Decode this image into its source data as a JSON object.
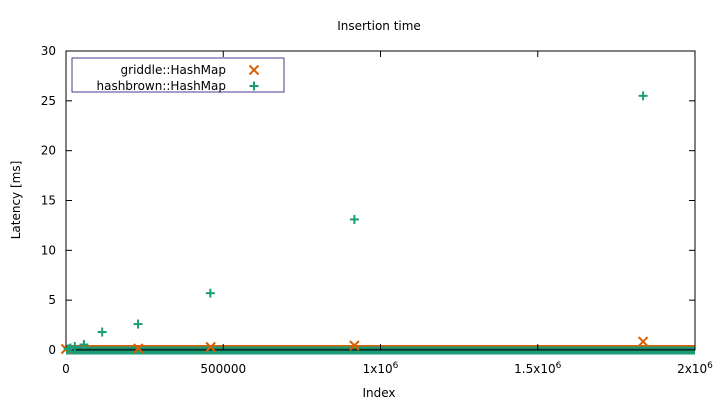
{
  "chart_data": {
    "type": "scatter",
    "title": "Insertion time",
    "xlabel": "Index",
    "ylabel": "Latency [ms]",
    "xlim": [
      0,
      2000000
    ],
    "ylim": [
      0,
      30
    ],
    "x_ticks": [
      {
        "value": 0,
        "label": "0"
      },
      {
        "value": 500000,
        "label": "500000"
      },
      {
        "value": 1000000,
        "base": "1x10",
        "exp": "6"
      },
      {
        "value": 1500000,
        "base": "1.5x10",
        "exp": "6"
      },
      {
        "value": 2000000,
        "base": "2x10",
        "exp": "6"
      }
    ],
    "y_ticks": [
      0,
      5,
      10,
      15,
      20,
      25,
      30
    ],
    "legend_position": "top-left",
    "grid": false,
    "series": [
      {
        "name": "griddle::HashMap",
        "marker": "x",
        "color": "#d95f02",
        "baseline": 0.1,
        "points": [
          {
            "x": 0,
            "y": 0.1
          },
          {
            "x": 230000,
            "y": 0.15
          },
          {
            "x": 460000,
            "y": 0.3
          },
          {
            "x": 917000,
            "y": 0.45
          },
          {
            "x": 1835000,
            "y": 0.85
          }
        ]
      },
      {
        "name": "hashbrown::HashMap",
        "marker": "+",
        "color": "#1b9e77",
        "baseline": 0.05,
        "points": [
          {
            "x": 7000,
            "y": 0.1
          },
          {
            "x": 14000,
            "y": 0.2
          },
          {
            "x": 28000,
            "y": 0.35
          },
          {
            "x": 57000,
            "y": 0.55
          },
          {
            "x": 115000,
            "y": 1.8
          },
          {
            "x": 229000,
            "y": 2.6
          },
          {
            "x": 459000,
            "y": 5.7
          },
          {
            "x": 917000,
            "y": 13.1
          },
          {
            "x": 1835000,
            "y": 25.5
          }
        ]
      }
    ]
  }
}
